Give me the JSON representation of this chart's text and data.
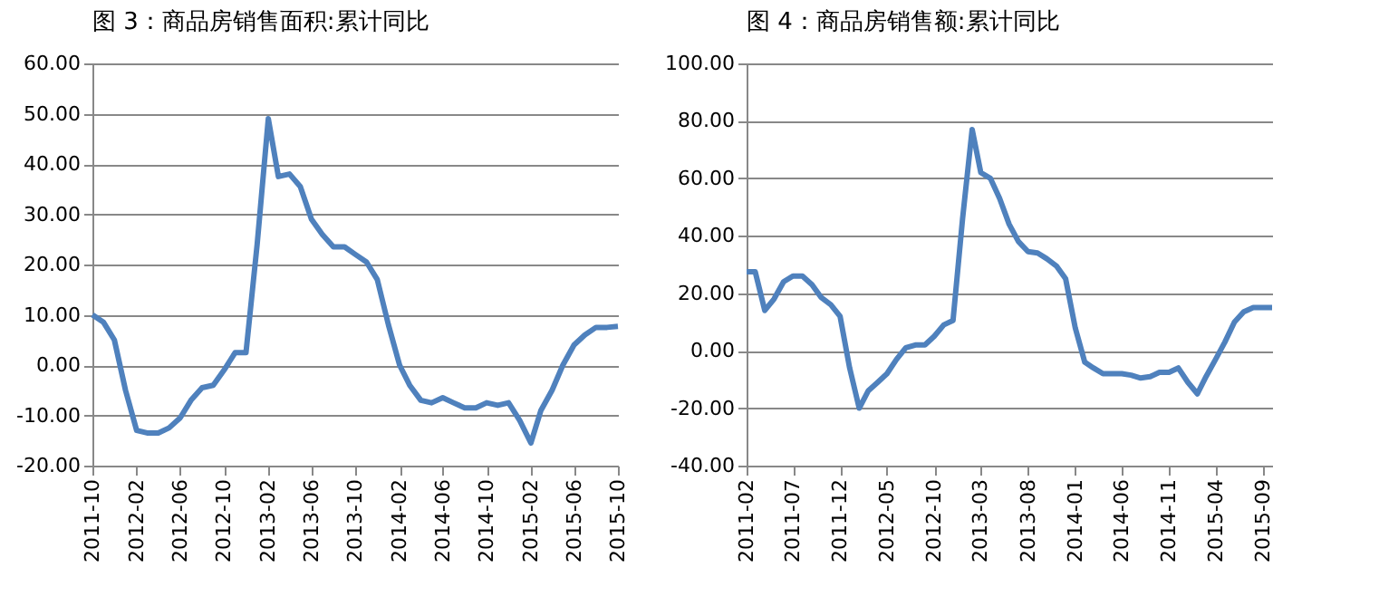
{
  "chart_data": [
    {
      "type": "line",
      "title": "图 3：商品房销售面积:累计同比",
      "x": [
        "2011-10",
        "2011-11",
        "2011-12",
        "2012-01",
        "2012-02",
        "2012-03",
        "2012-04",
        "2012-05",
        "2012-06",
        "2012-07",
        "2012-08",
        "2012-09",
        "2012-10",
        "2012-11",
        "2012-12",
        "2013-01",
        "2013-02",
        "2013-03",
        "2013-04",
        "2013-05",
        "2013-06",
        "2013-07",
        "2013-08",
        "2013-09",
        "2013-10",
        "2013-11",
        "2013-12",
        "2014-01",
        "2014-02",
        "2014-03",
        "2014-04",
        "2014-05",
        "2014-06",
        "2014-07",
        "2014-08",
        "2014-09",
        "2014-10",
        "2014-11",
        "2014-12",
        "2015-01",
        "2015-02",
        "2015-03",
        "2015-04",
        "2015-05",
        "2015-06",
        "2015-07",
        "2015-08",
        "2015-09",
        "2015-10"
      ],
      "series": [
        {
          "color": "#4f81bd",
          "values": [
            10,
            8.5,
            5,
            -5,
            -13,
            -13.5,
            -13.5,
            -12.5,
            -10.5,
            -7,
            -4.5,
            -4,
            -1,
            2.5,
            2.5,
            24,
            49,
            37.5,
            38,
            35.5,
            29,
            26,
            23.5,
            23.5,
            22,
            20.5,
            17,
            8,
            0,
            -4,
            -7,
            -7.5,
            -6.5,
            -7.5,
            -8.5,
            -8.5,
            -7.5,
            -8,
            -7.5,
            -11,
            -15.5,
            -9,
            -5,
            0,
            4,
            6,
            7.5,
            7.5,
            7.7
          ]
        }
      ],
      "xlim": [
        "2011-10",
        "2015-10"
      ],
      "xticks": [
        {
          "value": "2011-10",
          "label": "2011-10"
        },
        {
          "value": "2012-02",
          "label": "2012-02"
        },
        {
          "value": "2012-06",
          "label": "2012-06"
        },
        {
          "value": "2012-10",
          "label": "2012-10"
        },
        {
          "value": "2013-02",
          "label": "2013-02"
        },
        {
          "value": "2013-06",
          "label": "2013-06"
        },
        {
          "value": "2013-10",
          "label": "2013-10"
        },
        {
          "value": "2014-02",
          "label": "2014-02"
        },
        {
          "value": "2014-06",
          "label": "2014-06"
        },
        {
          "value": "2014-10",
          "label": "2014-10"
        },
        {
          "value": "2015-02",
          "label": "2015-02"
        },
        {
          "value": "2015-06",
          "label": "2015-06"
        },
        {
          "value": "2015-10",
          "label": "2015-10"
        }
      ],
      "ylim": [
        -20,
        60
      ],
      "yticks": [
        {
          "value": -20,
          "label": "-20.00"
        },
        {
          "value": -10,
          "label": "-10.00"
        },
        {
          "value": 0,
          "label": "0.00"
        },
        {
          "value": 10,
          "label": "10.00"
        },
        {
          "value": 20,
          "label": "20.00"
        },
        {
          "value": 30,
          "label": "30.00"
        },
        {
          "value": 40,
          "label": "40.00"
        },
        {
          "value": 50,
          "label": "50.00"
        },
        {
          "value": 60,
          "label": "60.00"
        }
      ],
      "grid": "y",
      "line_style": "solid"
    },
    {
      "type": "line",
      "title": "图 4：商品房销售额:累计同比",
      "x": [
        "2011-02",
        "2011-03",
        "2011-04",
        "2011-05",
        "2011-06",
        "2011-07",
        "2011-08",
        "2011-09",
        "2011-10",
        "2011-11",
        "2011-12",
        "2012-01",
        "2012-02",
        "2012-03",
        "2012-04",
        "2012-05",
        "2012-06",
        "2012-07",
        "2012-08",
        "2012-09",
        "2012-10",
        "2012-11",
        "2012-12",
        "2013-01",
        "2013-02",
        "2013-03",
        "2013-04",
        "2013-05",
        "2013-06",
        "2013-07",
        "2013-08",
        "2013-09",
        "2013-10",
        "2013-11",
        "2013-12",
        "2014-01",
        "2014-02",
        "2014-03",
        "2014-04",
        "2014-05",
        "2014-06",
        "2014-07",
        "2014-08",
        "2014-09",
        "2014-10",
        "2014-11",
        "2014-12",
        "2015-01",
        "2015-02",
        "2015-03",
        "2015-04",
        "2015-05",
        "2015-06",
        "2015-07",
        "2015-08",
        "2015-09",
        "2015-10"
      ],
      "series": [
        {
          "color": "#4f81bd",
          "values": [
            27.5,
            27.5,
            14,
            18,
            24,
            26,
            26,
            23,
            18.5,
            16,
            12,
            -6,
            -20,
            -14,
            -11,
            -8,
            -3,
            1,
            2,
            2,
            5,
            9,
            10.5,
            46,
            77,
            62,
            60,
            53,
            44,
            38,
            34.5,
            34,
            32,
            29.5,
            25,
            8,
            -4,
            -6,
            -8,
            -8,
            -8,
            -8.5,
            -9.5,
            -9,
            -7.5,
            -7.5,
            -6,
            -11,
            -15,
            -9,
            -3,
            3,
            10,
            13.5,
            15,
            15,
            15
          ]
        }
      ],
      "xlim": [
        "2011-02",
        "2015-10"
      ],
      "xticks": [
        {
          "value": "2011-02",
          "label": "2011-02"
        },
        {
          "value": "2011-07",
          "label": "2011-07"
        },
        {
          "value": "2011-12",
          "label": "2011-12"
        },
        {
          "value": "2012-05",
          "label": "2012-05"
        },
        {
          "value": "2012-10",
          "label": "2012-10"
        },
        {
          "value": "2013-03",
          "label": "2013-03"
        },
        {
          "value": "2013-08",
          "label": "2013-08"
        },
        {
          "value": "2014-01",
          "label": "2014-01"
        },
        {
          "value": "2014-06",
          "label": "2014-06"
        },
        {
          "value": "2014-11",
          "label": "2014-11"
        },
        {
          "value": "2015-04",
          "label": "2015-04"
        },
        {
          "value": "2015-09",
          "label": "2015-09"
        }
      ],
      "ylim": [
        -40,
        100
      ],
      "yticks": [
        {
          "value": -40,
          "label": "-40.00"
        },
        {
          "value": -20,
          "label": "-20.00"
        },
        {
          "value": 0,
          "label": "0.00"
        },
        {
          "value": 20,
          "label": "20.00"
        },
        {
          "value": 40,
          "label": "40.00"
        },
        {
          "value": 60,
          "label": "60.00"
        },
        {
          "value": 80,
          "label": "80.00"
        },
        {
          "value": 100,
          "label": "100.00"
        }
      ],
      "grid": "y",
      "line_style": "solid"
    }
  ]
}
